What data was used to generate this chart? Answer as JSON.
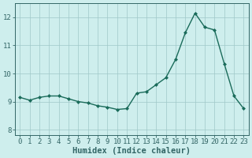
{
  "x": [
    0,
    1,
    2,
    3,
    4,
    5,
    6,
    7,
    8,
    9,
    10,
    11,
    12,
    13,
    14,
    15,
    16,
    17,
    18,
    19,
    20,
    21,
    22,
    23
  ],
  "y": [
    9.15,
    9.05,
    9.15,
    9.2,
    9.2,
    9.1,
    9.0,
    8.95,
    8.85,
    8.8,
    8.72,
    8.75,
    9.3,
    9.35,
    9.6,
    9.85,
    10.5,
    11.45,
    12.15,
    11.65,
    11.55,
    10.35,
    9.2,
    8.75
  ],
  "xlabel": "Humidex (Indice chaleur)",
  "xlim": [
    -0.5,
    23.5
  ],
  "ylim": [
    7.8,
    12.5
  ],
  "yticks": [
    8,
    9,
    10,
    11,
    12
  ],
  "xticks": [
    0,
    1,
    2,
    3,
    4,
    5,
    6,
    7,
    8,
    9,
    10,
    11,
    12,
    13,
    14,
    15,
    16,
    17,
    18,
    19,
    20,
    21,
    22,
    23
  ],
  "line_color": "#1a6b5a",
  "marker": "D",
  "marker_size": 2.0,
  "bg_color": "#ceeeed",
  "grid_color": "#a0c8c8",
  "axis_color": "#336666",
  "xlabel_fontsize": 7.5,
  "tick_fontsize": 6.5,
  "line_width": 1.0
}
